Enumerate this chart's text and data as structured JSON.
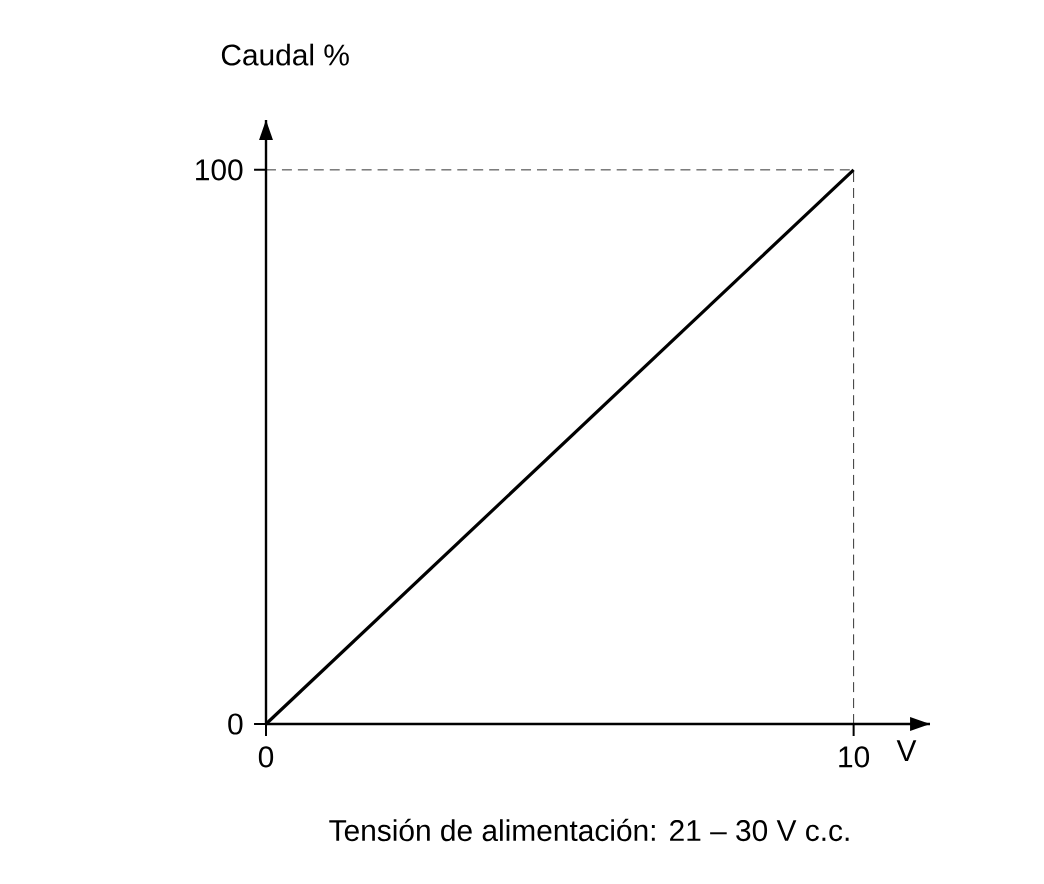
{
  "chart_data": {
    "type": "line",
    "xlabel": "V",
    "ylabel": "Caudal %",
    "x": [
      0,
      10
    ],
    "series": [
      {
        "color": "#000000",
        "values": [
          0,
          100
        ]
      }
    ],
    "xlim": [
      0,
      11.3
    ],
    "ylim": [
      0,
      109
    ],
    "xticks": [
      0,
      10
    ],
    "yticks": [
      0,
      100
    ],
    "ref_lines": [
      {
        "axis": "y",
        "value": 100,
        "line_style": "dashed"
      },
      {
        "axis": "x",
        "value": 10,
        "line_style": "dashed"
      }
    ],
    "annotations": [
      "Tensión de alimentación: 21 – 30 V c.c."
    ],
    "grid": false,
    "marker": "none",
    "line_style": "solid"
  }
}
